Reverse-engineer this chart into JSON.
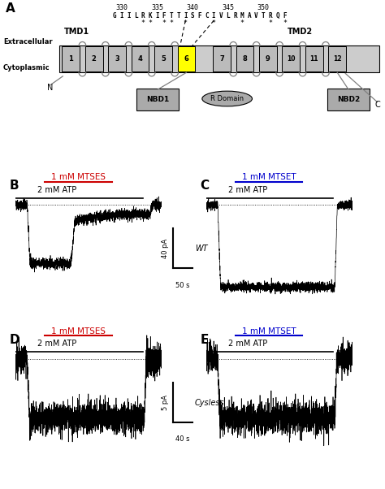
{
  "panel_A": {
    "sequence_numbers": [
      "330",
      "335",
      "340",
      "345",
      "350"
    ],
    "sequence": "GIILRKIFTTISFCIVLRMAVTRQF",
    "stars_positions": [
      4,
      5,
      7,
      8,
      10,
      14,
      18,
      22,
      24
    ],
    "TMD1_label": "TMD1",
    "TMD2_label": "TMD2",
    "extracellular_label": "Extracellular",
    "cytoplasmic_label": "Cytoplasmic",
    "TM_segments": [
      "1",
      "2",
      "3",
      "4",
      "5",
      "6",
      "7",
      "8",
      "9",
      "10",
      "11",
      "12"
    ],
    "highlighted_TM": "6",
    "NBD1_label": "NBD1",
    "NBD2_label": "NBD2",
    "R_domain_label": "R Domain",
    "N_label": "N",
    "C_label": "C"
  },
  "panel_B": {
    "label": "B",
    "drug_label": "1 mM MTSES",
    "drug_color": "#cc0000",
    "atp_label": "2 mM ATP"
  },
  "panel_C": {
    "label": "C",
    "drug_label": "1 mM MTSET",
    "drug_color": "#0000cc",
    "atp_label": "2 mM ATP"
  },
  "panel_D": {
    "label": "D",
    "drug_label": "1 mM MTSES",
    "drug_color": "#cc0000",
    "atp_label": "2 mM ATP"
  },
  "panel_E": {
    "label": "E",
    "drug_label": "1 mM MTSET",
    "drug_color": "#0000cc",
    "atp_label": "2 mM ATP"
  },
  "scalebar_WT": {
    "amplitude": "40 pA",
    "time": "50 s",
    "label": "WT"
  },
  "scalebar_Cysless": {
    "amplitude": "5 pA",
    "time": "40 s",
    "label": "Cysless"
  },
  "colors": {
    "gray_box": "#aaaaaa",
    "gray_membrane": "#cccccc",
    "yellow_highlight": "#ffff00",
    "black": "#000000",
    "white": "#ffffff",
    "light_gray_TM": "#bbbbbb"
  }
}
